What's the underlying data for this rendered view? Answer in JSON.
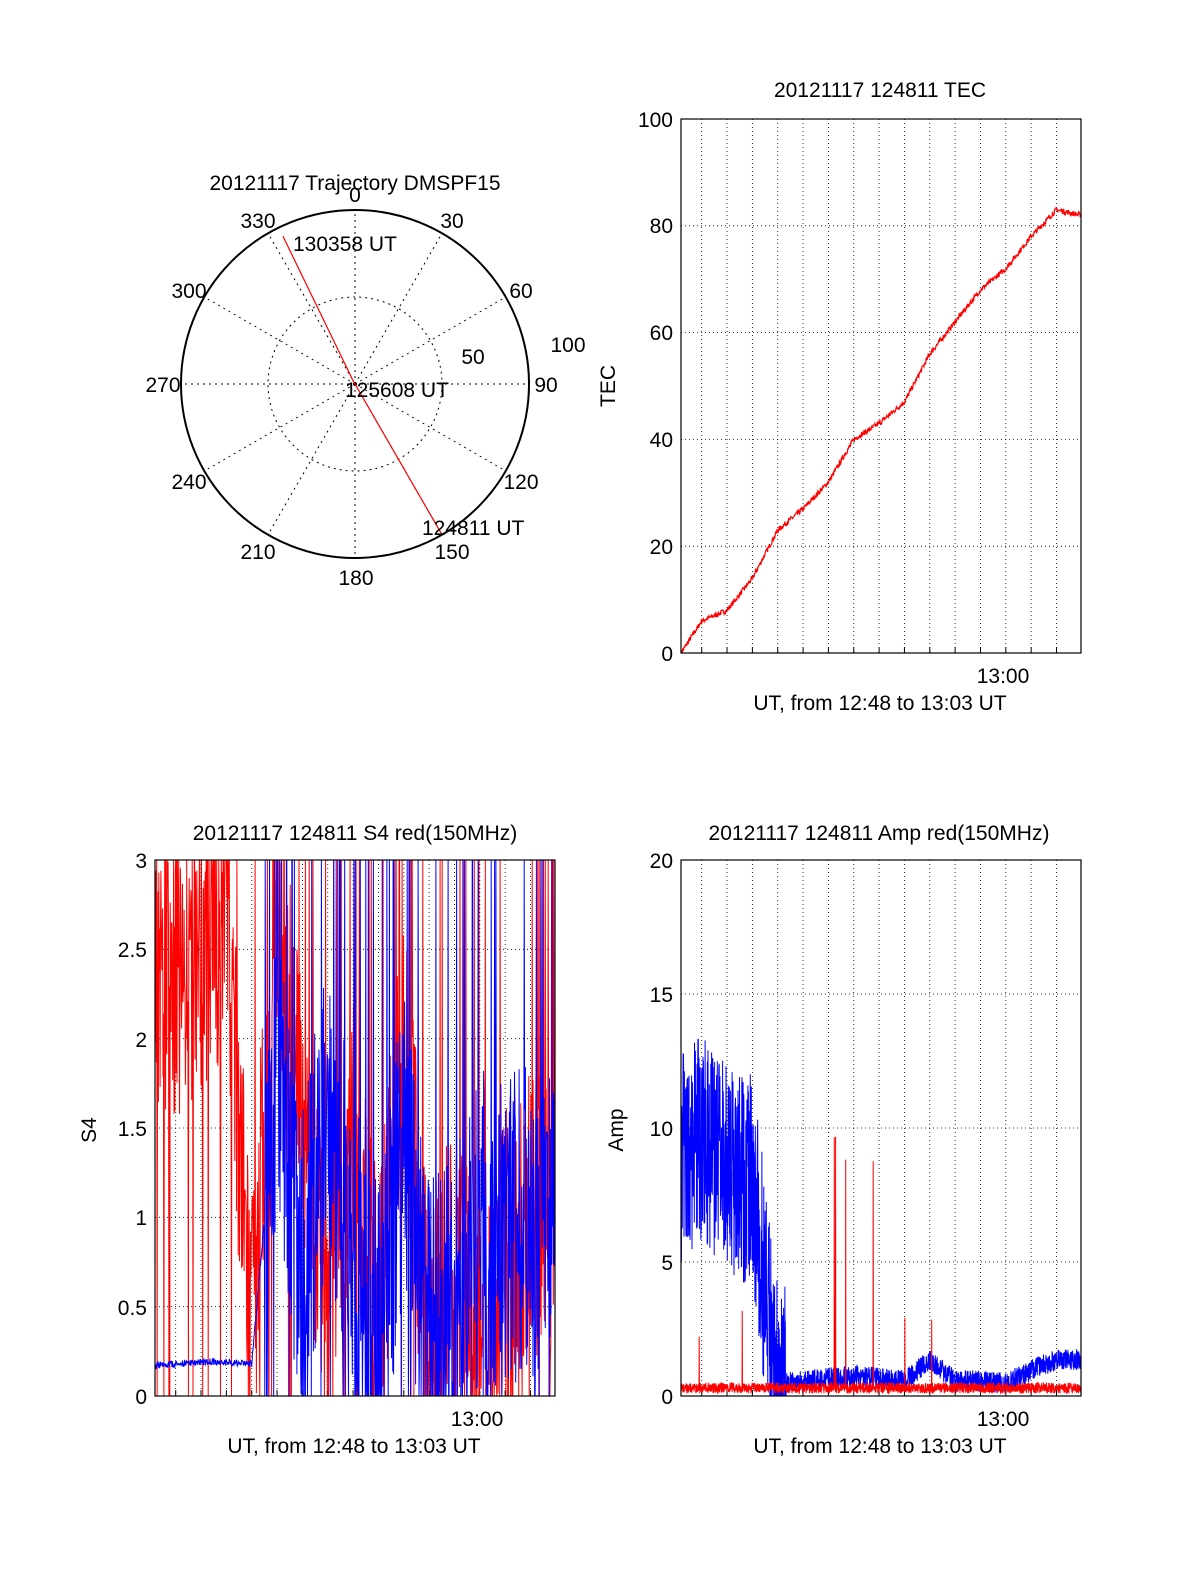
{
  "colors": {
    "red": "#ff0000",
    "blue": "#0000ff",
    "axis": "#000000",
    "grid": "#000000"
  },
  "chart_data": [
    {
      "type": "polar",
      "title": "20121117 Trajectory DMSPF15",
      "azimuth_labels": [
        "0",
        "30",
        "60",
        "90",
        "120",
        "150",
        "180",
        "210",
        "240",
        "270",
        "300",
        "330"
      ],
      "radial_labels": [
        "50",
        "100"
      ],
      "grid": true,
      "series": [
        {
          "color": "red",
          "points": [
            {
              "label": "124811 UT",
              "az": 150,
              "el": 0
            },
            {
              "label": "125608 UT",
              "az": 330,
              "el": 88
            },
            {
              "label": "130358 UT",
              "az": 334,
              "el": 5
            }
          ]
        }
      ]
    },
    {
      "type": "line",
      "title": "20121117 124811 TEC",
      "xlabel": "UT, from 12:48 to 13:03 UT",
      "ylabel": "TEC",
      "xlim": [
        "12:48:11",
        "13:03:58"
      ],
      "ylim": [
        0,
        100
      ],
      "yticks": [
        "0",
        "20",
        "40",
        "60",
        "80",
        "100"
      ],
      "xticks": [
        "13:00"
      ],
      "grid": true,
      "series": [
        {
          "color": "red",
          "x": [
            "12:48:11",
            "12:49",
            "12:50",
            "12:51",
            "12:52",
            "12:53",
            "12:54",
            "12:55",
            "12:56",
            "12:57",
            "12:58",
            "12:59",
            "13:00",
            "13:01",
            "13:02",
            "13:03",
            "13:03:58"
          ],
          "values": [
            0,
            6,
            8,
            14,
            23,
            27,
            32,
            40,
            43,
            47,
            56,
            62,
            68,
            72,
            78,
            83,
            82
          ]
        }
      ]
    },
    {
      "type": "line",
      "title": "20121117 124811 S4 red(150MHz)",
      "xlabel": "UT, from 12:48 to 13:03 UT",
      "ylabel": "S4",
      "xlim": [
        "12:48:11",
        "13:03:58"
      ],
      "ylim": [
        0,
        3
      ],
      "yticks": [
        "0",
        "0.5",
        "1",
        "1.5",
        "2",
        "2.5",
        "3"
      ],
      "xticks": [
        "13:00"
      ],
      "grid": true,
      "series": [
        {
          "color": "red",
          "x": [
            "12:48:11",
            "12:49",
            "12:50",
            "12:51",
            "12:52",
            "12:53",
            "12:54",
            "12:55",
            "12:56",
            "12:57",
            "12:58",
            "12:59",
            "13:00",
            "13:01",
            "13:02",
            "13:03",
            "13:03:58"
          ],
          "values": [
            2.4,
            2.3,
            2.5,
            2.6,
            0.3,
            2.8,
            1.5,
            0.5,
            1.5,
            0.4,
            2.0,
            0.2,
            1.0,
            0.1,
            0.9,
            1.0,
            1.0
          ]
        },
        {
          "color": "blue",
          "x": [
            "12:48:11",
            "12:49",
            "12:50",
            "12:51",
            "12:52",
            "12:53",
            "12:54",
            "12:55",
            "12:56",
            "12:57",
            "12:58",
            "12:59",
            "13:00",
            "13:01",
            "13:02",
            "13:03",
            "13:03:58"
          ],
          "values": [
            0.17,
            0.18,
            0.19,
            0.19,
            0.18,
            1.8,
            0.7,
            1.6,
            0.8,
            0.3,
            1.5,
            0.3,
            0.5,
            1.0,
            0.9,
            1.0,
            1.0
          ]
        }
      ]
    },
    {
      "type": "line",
      "title": "20121117 124811 Amp red(150MHz)",
      "xlabel": "UT, from 12:48 to 13:03 UT",
      "ylabel": "Amp",
      "xlim": [
        "12:48:11",
        "13:03:58"
      ],
      "ylim": [
        0,
        20
      ],
      "yticks": [
        "0",
        "5",
        "10",
        "15",
        "20"
      ],
      "xticks": [
        "13:00"
      ],
      "grid": true,
      "series": [
        {
          "color": "red",
          "x": [
            "12:48:11",
            "12:49",
            "12:50",
            "12:51",
            "12:52",
            "12:53",
            "12:54",
            "12:55",
            "12:56",
            "12:57",
            "12:58",
            "12:59",
            "13:00",
            "13:01",
            "13:02",
            "13:03",
            "13:03:58"
          ],
          "values": [
            0.3,
            0.3,
            0.3,
            0.3,
            0.3,
            0.3,
            0.3,
            0.3,
            0.3,
            0.3,
            0.3,
            0.3,
            0.3,
            0.3,
            0.3,
            0.3,
            0.3
          ]
        },
        {
          "color": "blue",
          "x": [
            "12:48:11",
            "12:49",
            "12:50",
            "12:51",
            "12:52",
            "12:53",
            "12:54",
            "12:55",
            "12:56",
            "12:57",
            "12:58",
            "12:59",
            "13:00",
            "13:01",
            "13:02",
            "13:03",
            "13:03:58"
          ],
          "values": [
            9,
            9.5,
            8.5,
            8,
            0.3,
            0.4,
            0.5,
            0.6,
            0.5,
            0.4,
            1.2,
            0.4,
            0.4,
            0.3,
            0.8,
            1.2,
            1.2
          ]
        }
      ]
    }
  ]
}
